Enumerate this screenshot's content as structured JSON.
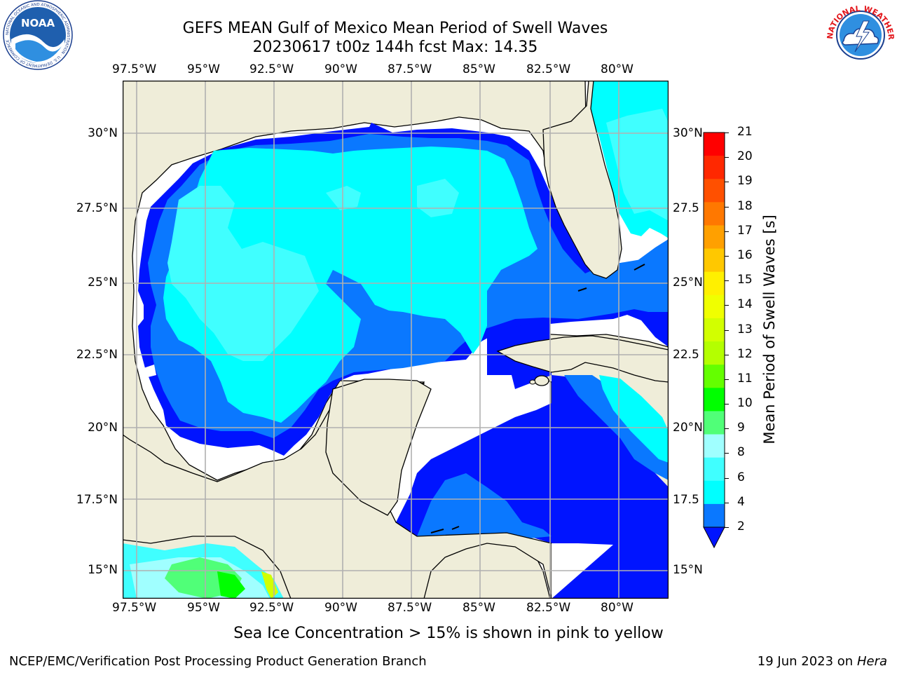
{
  "header": {
    "title_line1": "GEFS MEAN Gulf of Mexico Mean Period of Swell Waves",
    "title_line2": "20230617 t00z 144h fcst   Max: 14.35"
  },
  "logos": {
    "left": "NOAA",
    "left_ring": "NATIONAL OCEANIC AND ATMOSPHERIC ADMINISTRATION · U.S. DEPARTMENT OF COMMERCE",
    "right_ring": "NATIONAL WEATHER SERVICE"
  },
  "map": {
    "lon_labels": [
      "97.5°W",
      "95°W",
      "92.5°W",
      "90°W",
      "87.5°W",
      "85°W",
      "82.5°W",
      "80°W"
    ],
    "lat_labels_left": [
      "30°N",
      "27.5°N",
      "25°N",
      "22.5°N",
      "20°N",
      "17.5°N",
      "15°N"
    ],
    "lat_labels_right": [
      "30°N",
      "27.5",
      "25°N",
      "22.5",
      "20°N",
      "17.5",
      "15°N"
    ],
    "colors": {
      "land": "#efedd9",
      "ocean_blue": "#0014ff",
      "ocean_mid": "#0a78ff",
      "ocean_cyan": "#00ffff",
      "ocean_lightcyan": "#40ffff",
      "grid": "#b0b0b0"
    }
  },
  "colorbar": {
    "label": "Mean Period of Swell Waves [s]",
    "ticks": [
      "21",
      "20",
      "19",
      "18",
      "17",
      "16",
      "15",
      "14",
      "13",
      "12",
      "11",
      "10",
      "9",
      "8",
      "6",
      "4",
      "2"
    ],
    "colors": [
      "#ff0000",
      "#ff2800",
      "#ff5000",
      "#ff7800",
      "#ffa000",
      "#ffc800",
      "#fff000",
      "#f0ff00",
      "#d2ff00",
      "#b4ff00",
      "#64ff00",
      "#00ff00",
      "#50ff78",
      "#a0ffff",
      "#40ffff",
      "#00ffff",
      "#0a78ff"
    ],
    "extend_color": "#0014ff"
  },
  "footer": {
    "note": "Sea Ice Concentration > 15% is shown in pink to yellow",
    "credit": "NCEP/EMC/Verification Post Processing Product Generation Branch",
    "date": "19 Jun 2023 on",
    "host": "Hera"
  }
}
